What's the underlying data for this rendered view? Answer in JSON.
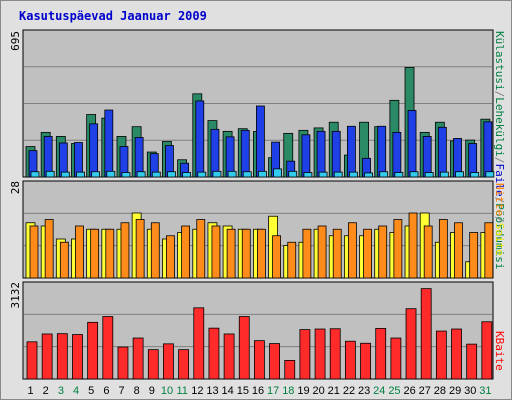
{
  "chart_data": {
    "type": "bar",
    "title": "Kasutuspäevad Jaanuar 2009",
    "grid": true,
    "categories": [
      "1",
      "2",
      "3",
      "4",
      "5",
      "6",
      "7",
      "8",
      "9",
      "10",
      "11",
      "12",
      "13",
      "14",
      "15",
      "16",
      "17",
      "18",
      "19",
      "20",
      "21",
      "22",
      "23",
      "24",
      "25",
      "26",
      "27",
      "28",
      "29",
      "30",
      "31"
    ],
    "weekend_days": [
      "3",
      "4",
      "10",
      "11",
      "17",
      "18",
      "24",
      "25",
      "31"
    ],
    "colors": {
      "background": "#c0c0c0",
      "day_label": "#000000",
      "weekend_label": "#008040",
      "title": "#0000cc",
      "visits_bar": "#2a8a66",
      "pages_bar": "#1e40e6",
      "files_bar": "#33ccee",
      "hosts_bar": "#ffff33",
      "kbytes_bar": "#ff2a2a",
      "hits_bar": "#ff8c1a",
      "label_visits": "#008040",
      "label_files": "#0000cc",
      "label_hits": "#ff8000",
      "label_hosts": "#e6e600",
      "label_kbytes": "#ff0000",
      "label_separator": "#808080"
    },
    "panels": [
      {
        "id": "top",
        "ymax_label": "695",
        "ymax": 695,
        "series": [
          {
            "name": "Külastusi",
            "color": "#2a8a66",
            "values": [
              150,
              220,
              200,
              165,
              308,
              290,
              200,
              248,
              123,
              175,
              85,
              410,
              278,
              225,
              238,
              224,
              95,
              215,
              230,
              242,
              270,
              108,
              270,
              248,
              378,
              540,
              220,
              270,
              178,
              182,
              285
            ]
          },
          {
            "name": "Lehekülgi",
            "color": "#1e40e6",
            "values": [
              130,
              200,
              168,
              170,
              262,
              330,
              150,
              195,
              115,
              155,
              68,
              375,
              235,
              198,
              230,
              350,
              172,
              78,
              208,
              225,
              225,
              250,
              92,
              250,
              220,
              328,
              200,
              245,
              190,
              165,
              272
            ]
          },
          {
            "name": "Faile",
            "color": "#33ccee",
            "values": [
              26,
              28,
              24,
              24,
              26,
              28,
              22,
              26,
              24,
              26,
              22,
              24,
              28,
              28,
              26,
              28,
              40,
              28,
              22,
              24,
              24,
              24,
              20,
              26,
              22,
              26,
              22,
              24,
              26,
              22,
              26
            ]
          }
        ]
      },
      {
        "id": "middle",
        "ymax_label": "28",
        "ymax": 28,
        "series": [
          {
            "name": "Saite",
            "color": "#ffff33",
            "values": [
              17,
              16,
              12,
              12,
              15,
              15,
              15,
              20,
              15,
              12,
              14,
              15,
              17,
              16,
              15,
              15,
              19,
              10,
              11,
              15,
              13,
              13,
              13,
              15,
              14,
              16,
              20,
              11,
              14,
              5,
              14
            ]
          },
          {
            "name": "Hitte",
            "color": "#ff8c1a",
            "values": [
              16,
              18,
              11,
              16,
              15,
              15,
              17,
              18,
              17,
              13,
              16,
              18,
              16,
              15,
              15,
              15,
              13,
              11,
              15,
              16,
              15,
              17,
              15,
              16,
              18,
              20,
              16,
              18,
              17,
              14,
              17
            ]
          }
        ]
      },
      {
        "id": "bottom",
        "ymax_label": "3132",
        "ymax": 3132,
        "series": [
          {
            "name": "KBaite",
            "color": "#ff2a2a",
            "values": [
              1280,
              1550,
              1560,
              1530,
              1950,
              2150,
              1100,
              1410,
              1010,
              1210,
              1010,
              2450,
              1750,
              1550,
              2150,
              1320,
              1220,
              640,
              1700,
              1720,
              1730,
              1300,
              1230,
              1740,
              1410,
              2420,
              3110,
              1650,
              1720,
              1200,
              1970
            ]
          }
        ]
      }
    ],
    "right_labels_top": [
      "Külastusi",
      "Lehekülgi",
      "Faile",
      "Pöördumisi"
    ],
    "right_labels_middle": [
      "Hitte",
      "Saite"
    ],
    "right_labels_bottom": [
      "KBaite"
    ],
    "right_label_separator": "/"
  }
}
